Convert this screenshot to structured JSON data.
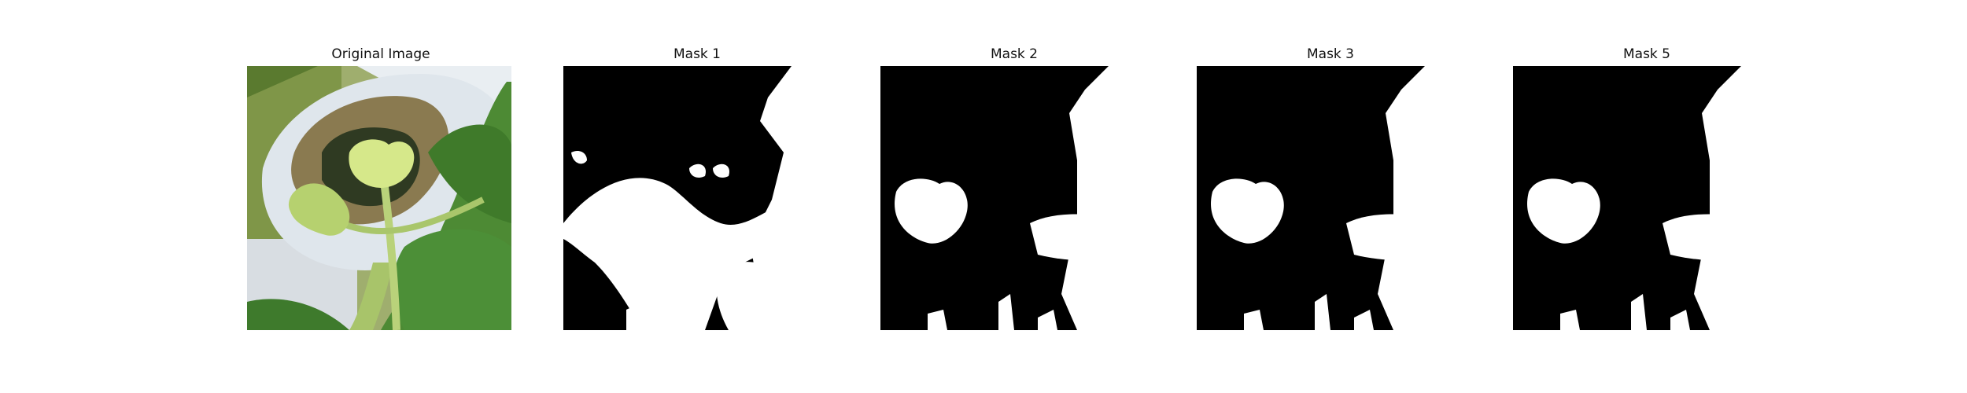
{
  "panels": [
    {
      "id": "original",
      "title": "Original Image",
      "image_desc": "photo of a seedling with heart-shaped cotyledons emerging from a cup, surrounded by green leaves"
    },
    {
      "id": "mask1",
      "title": "Mask 1",
      "image_desc": "binary segmentation mask, white foreground on black"
    },
    {
      "id": "mask2",
      "title": "Mask 2",
      "image_desc": "binary segmentation mask, white foreground on black"
    },
    {
      "id": "mask3",
      "title": "Mask 3",
      "image_desc": "binary segmentation mask, white foreground on black"
    },
    {
      "id": "mask5",
      "title": "Mask 5",
      "image_desc": "binary segmentation mask, white foreground on black"
    }
  ],
  "colors": {
    "mask_background": "#000000",
    "mask_foreground": "#ffffff",
    "title_text": "#111111"
  }
}
